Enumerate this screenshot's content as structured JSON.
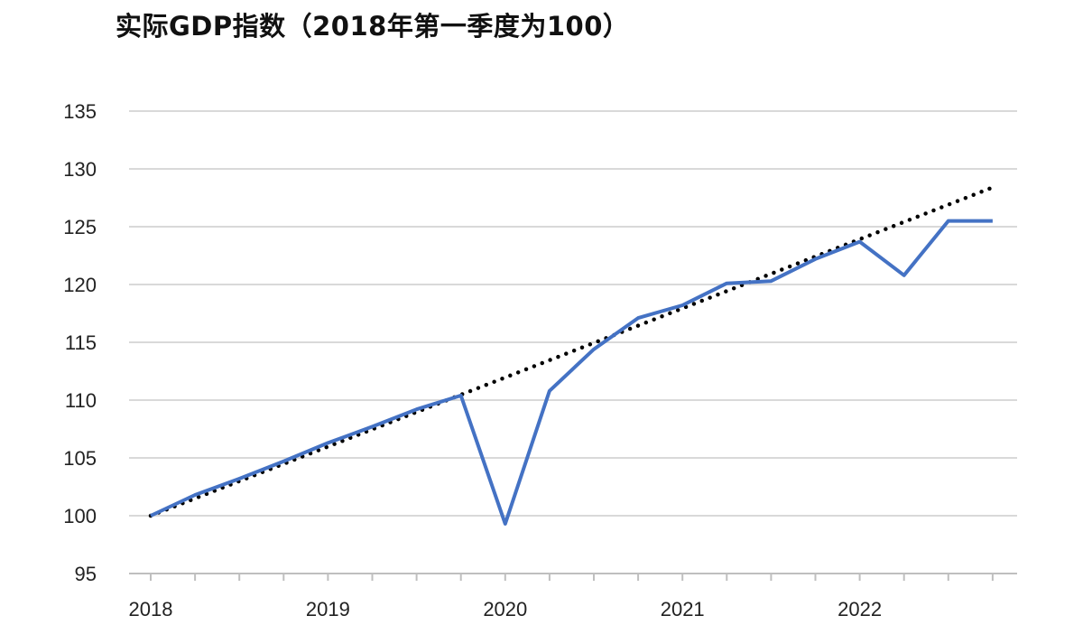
{
  "chart_data": {
    "type": "line",
    "title": "实际GDP指数（2018年第一季度为100）",
    "xlabel": "",
    "ylabel": "",
    "ylim": [
      95,
      135
    ],
    "yticks": [
      95,
      100,
      105,
      110,
      115,
      120,
      125,
      130,
      135
    ],
    "xtick_labels": [
      "2018",
      "2019",
      "2020",
      "2021",
      "2022"
    ],
    "grid": "horizontal",
    "legend": "none",
    "series": [
      {
        "style": "solid",
        "color": "#4472C4",
        "x": [
          "2018Q1",
          "2018Q2",
          "2018Q3",
          "2018Q4",
          "2019Q1",
          "2019Q2",
          "2019Q3",
          "2019Q4",
          "2020Q1",
          "2020Q2",
          "2020Q3",
          "2020Q4",
          "2021Q1",
          "2021Q2",
          "2021Q3",
          "2021Q4",
          "2022Q1",
          "2022Q2",
          "2022Q3",
          "2022Q4"
        ],
        "values": [
          100.0,
          101.8,
          103.2,
          104.7,
          106.3,
          107.7,
          109.2,
          110.4,
          99.3,
          110.8,
          114.4,
          117.1,
          118.2,
          120.1,
          120.3,
          122.2,
          123.7,
          120.8,
          125.5,
          125.5
        ]
      },
      {
        "style": "dotted",
        "color": "#000000",
        "x": [
          "2018Q1",
          "2022Q4"
        ],
        "values": [
          100.0,
          128.4
        ]
      }
    ]
  }
}
